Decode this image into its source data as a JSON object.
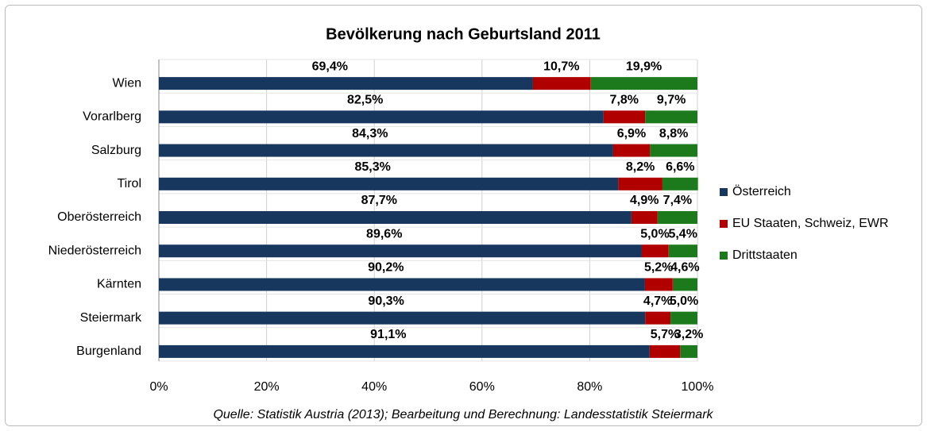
{
  "chart_data": {
    "type": "stacked_bar_horizontal",
    "title": "Bevölkerung nach Geburtsland 2011",
    "source": "Quelle: Statistik Austria (2013); Bearbeitung und Berechnung: Landesstatistik Steiermark",
    "categories": [
      "Wien",
      "Vorarlberg",
      "Salzburg",
      "Tirol",
      "Oberösterreich",
      "Niederösterreich",
      "Kärnten",
      "Steiermark",
      "Burgenland"
    ],
    "series": [
      {
        "name": "Österreich",
        "color": "#17375E",
        "values": [
          69.4,
          82.5,
          84.3,
          85.3,
          87.7,
          89.6,
          90.2,
          90.3,
          91.1
        ],
        "value_labels": [
          "69,4%",
          "82,5%",
          "84,3%",
          "85,3%",
          "87,7%",
          "89,6%",
          "90,2%",
          "90,3%",
          "91,1%"
        ]
      },
      {
        "name": "EU Staaten, Schweiz, EWR",
        "color": "#B00000",
        "values": [
          10.7,
          7.8,
          6.9,
          8.2,
          4.9,
          5.0,
          5.2,
          4.7,
          5.7
        ],
        "value_labels": [
          "10,7%",
          "7,8%",
          "6,9%",
          "8,2%",
          "4,9%",
          "5,0%",
          "5,2%",
          "4,7%",
          "5,7%"
        ]
      },
      {
        "name": "Drittstaaten",
        "color": "#1C7A1C",
        "values": [
          19.9,
          9.7,
          8.8,
          6.6,
          7.4,
          5.4,
          4.6,
          5.0,
          3.2
        ],
        "value_labels": [
          "19,9%",
          "9,7%",
          "8,8%",
          "6,6%",
          "7,4%",
          "5,4%",
          "4,6%",
          "5,0%",
          "3,2%"
        ]
      }
    ],
    "xlim": [
      0,
      100
    ],
    "xticks": [
      {
        "value": 0,
        "label": "0%"
      },
      {
        "value": 20,
        "label": "20%"
      },
      {
        "value": 40,
        "label": "40%"
      },
      {
        "value": 60,
        "label": "60%"
      },
      {
        "value": 80,
        "label": "80%"
      },
      {
        "value": 100,
        "label": "100%"
      }
    ],
    "grid": true,
    "legend": "right"
  }
}
